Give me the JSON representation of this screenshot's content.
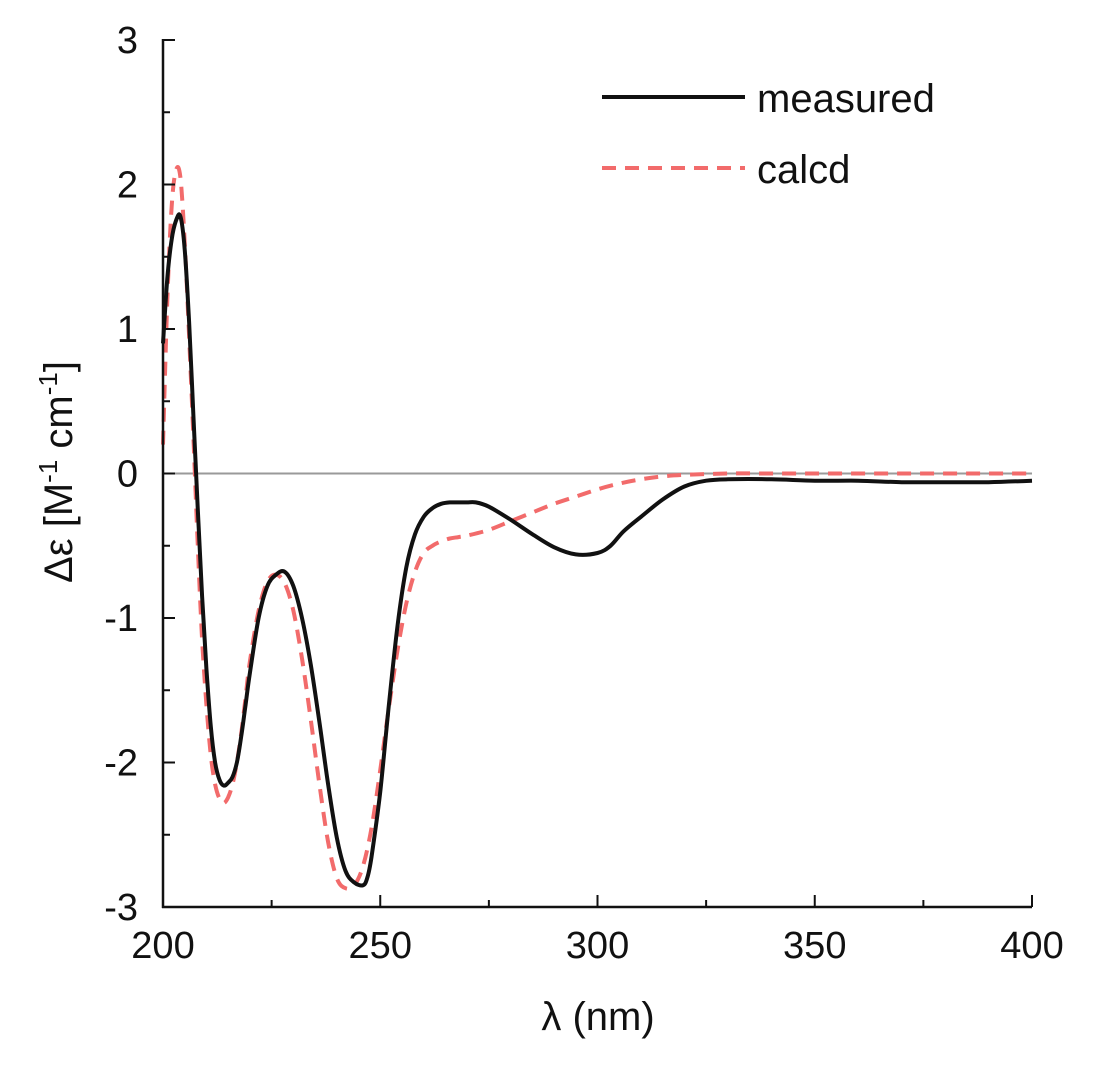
{
  "chart_data": {
    "type": "line",
    "title": "",
    "xlabel": "λ (nm)",
    "ylabel_main": "Δε [M",
    "ylabel_mid": " cm",
    "ylabel_sup1": "-1",
    "ylabel_sup2": "-1",
    "ylabel_end": "]",
    "xlim": [
      200,
      400
    ],
    "ylim": [
      -3,
      3
    ],
    "x_ticks": [
      200,
      250,
      300,
      350,
      400
    ],
    "x_tick_labels": [
      "200",
      "250",
      "300",
      "350",
      "400"
    ],
    "y_ticks": [
      -3,
      -2,
      -1,
      0,
      1,
      2,
      3
    ],
    "y_tick_labels": [
      "-3",
      "-2",
      "-1",
      "0",
      "1",
      "2",
      "3"
    ],
    "grid": false,
    "legend_position": "top-right",
    "zero_line_color": "#9a9a9a",
    "series": [
      {
        "name": "measured",
        "color": "#111111",
        "style": "solid",
        "x": [
          200,
          201,
          202,
          203,
          204,
          205,
          206,
          207,
          208,
          209,
          210,
          211,
          212,
          213,
          214,
          215,
          216,
          217,
          218,
          219,
          220,
          222,
          224,
          226,
          228,
          230,
          232,
          234,
          236,
          238,
          240,
          242,
          244,
          246,
          247,
          248,
          250,
          252,
          254,
          256,
          258,
          260,
          262,
          264,
          266,
          268,
          270,
          272,
          275,
          280,
          285,
          290,
          295,
          300,
          303,
          306,
          310,
          315,
          320,
          325,
          330,
          340,
          350,
          360,
          370,
          380,
          390,
          400
        ],
        "y": [
          0.9,
          1.35,
          1.62,
          1.75,
          1.78,
          1.55,
          1.05,
          0.4,
          -0.25,
          -0.85,
          -1.35,
          -1.75,
          -2.0,
          -2.12,
          -2.16,
          -2.14,
          -2.1,
          -2.0,
          -1.82,
          -1.6,
          -1.38,
          -1.0,
          -0.78,
          -0.7,
          -0.68,
          -0.78,
          -1.0,
          -1.32,
          -1.72,
          -2.15,
          -2.52,
          -2.75,
          -2.83,
          -2.85,
          -2.8,
          -2.65,
          -2.2,
          -1.6,
          -1.05,
          -0.65,
          -0.42,
          -0.3,
          -0.24,
          -0.21,
          -0.2,
          -0.2,
          -0.2,
          -0.2,
          -0.23,
          -0.32,
          -0.42,
          -0.51,
          -0.56,
          -0.55,
          -0.5,
          -0.4,
          -0.3,
          -0.18,
          -0.09,
          -0.05,
          -0.04,
          -0.04,
          -0.05,
          -0.05,
          -0.06,
          -0.06,
          -0.06,
          -0.05
        ]
      },
      {
        "name": "calcd",
        "color": "#f26b6b",
        "style": "dashed",
        "x": [
          200,
          201,
          202,
          203,
          204,
          205,
          206,
          207,
          208,
          209,
          210,
          211,
          212,
          213,
          214,
          215,
          216,
          217,
          218,
          219,
          220,
          222,
          224,
          226,
          228,
          230,
          232,
          234,
          236,
          238,
          240,
          242,
          244,
          246,
          248,
          250,
          252,
          254,
          256,
          258,
          260,
          262,
          264,
          266,
          268,
          270,
          275,
          280,
          285,
          290,
          295,
          300,
          305,
          310,
          315,
          320,
          330,
          340,
          350,
          360,
          370,
          380,
          390,
          400
        ],
        "y": [
          0.2,
          1.2,
          1.85,
          2.1,
          2.05,
          1.6,
          0.95,
          0.25,
          -0.5,
          -1.15,
          -1.6,
          -1.95,
          -2.15,
          -2.25,
          -2.28,
          -2.24,
          -2.15,
          -2.0,
          -1.8,
          -1.55,
          -1.3,
          -0.95,
          -0.75,
          -0.7,
          -0.76,
          -0.95,
          -1.28,
          -1.7,
          -2.15,
          -2.55,
          -2.8,
          -2.87,
          -2.85,
          -2.72,
          -2.45,
          -2.05,
          -1.62,
          -1.22,
          -0.9,
          -0.68,
          -0.55,
          -0.5,
          -0.47,
          -0.45,
          -0.44,
          -0.43,
          -0.39,
          -0.33,
          -0.27,
          -0.21,
          -0.16,
          -0.11,
          -0.07,
          -0.04,
          -0.02,
          -0.01,
          0.0,
          0.0,
          0.0,
          0.0,
          0.0,
          0.0,
          0.0,
          0.0
        ]
      }
    ]
  }
}
